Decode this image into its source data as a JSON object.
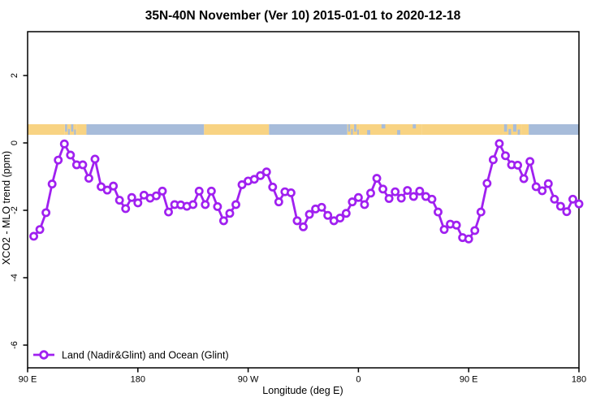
{
  "figure": {
    "title": "35N-40N November (Ver 10)   2015-01-01 to 2020-12-18",
    "background": "#FFFFFF"
  },
  "chart_data": {
    "type": "line",
    "title": "35N-40N November (Ver 10)   2015-01-01 to 2020-12-18",
    "xlabel": "Longitude (deg E)",
    "ylabel": "XCO2 - MLO trend (ppm)",
    "x_axis": {
      "tick_labels": [
        "90 E",
        "180",
        "90 W",
        "0",
        "90 E",
        "180"
      ],
      "tick_positions_deg": [
        0,
        90,
        180,
        270,
        360,
        450
      ],
      "range_deg": [
        0,
        450
      ],
      "wrap_note": "longitude axis runs 90E through 180, 90W, 0, 90E to 180 (450 deg span)"
    },
    "y_axis": {
      "tick_labels": [
        "2",
        "0",
        "-2",
        "-4",
        "-6"
      ],
      "tick_values": [
        2,
        0,
        -2,
        -4,
        -6
      ],
      "range": [
        -6.67,
        3.3
      ]
    },
    "legend": {
      "label": "Land (Nadir&Glint) and Ocean (Glint)",
      "position": "bottom-left",
      "marker": "open-circle-on-line"
    },
    "series": [
      {
        "name": "Land (Nadir&Glint) and Ocean (Glint)",
        "color": "#A020F0",
        "marker": "open-circle",
        "x_deg": [
          5,
          10,
          15,
          20,
          25,
          30,
          35,
          40,
          45,
          50,
          55,
          60,
          65,
          70,
          75,
          80,
          85,
          90,
          95,
          100,
          105,
          110,
          115,
          120,
          125,
          130,
          135,
          140,
          145,
          150,
          155,
          160,
          165,
          170,
          175,
          180,
          185,
          190,
          195,
          200,
          205,
          210,
          215,
          220,
          225,
          230,
          235,
          240,
          245,
          250,
          255,
          260,
          265,
          270,
          275,
          280,
          285,
          290,
          295,
          300,
          305,
          310,
          315,
          320,
          325,
          330,
          335,
          340,
          345,
          350,
          355,
          360,
          365,
          370,
          375,
          380,
          385,
          390,
          395,
          400,
          405,
          410,
          415,
          420,
          425,
          430,
          435,
          440,
          445,
          450
        ],
        "values": [
          -2.77,
          -2.57,
          -2.07,
          -1.22,
          -0.51,
          -0.03,
          -0.36,
          -0.65,
          -0.65,
          -1.05,
          -0.48,
          -1.3,
          -1.4,
          -1.28,
          -1.7,
          -1.95,
          -1.62,
          -1.78,
          -1.55,
          -1.64,
          -1.57,
          -1.43,
          -2.05,
          -1.83,
          -1.84,
          -1.88,
          -1.83,
          -1.43,
          -1.83,
          -1.43,
          -1.89,
          -2.31,
          -2.09,
          -1.83,
          -1.24,
          -1.13,
          -1.08,
          -0.97,
          -0.86,
          -1.31,
          -1.75,
          -1.45,
          -1.48,
          -2.31,
          -2.49,
          -2.12,
          -1.96,
          -1.91,
          -2.15,
          -2.31,
          -2.23,
          -2.09,
          -1.75,
          -1.62,
          -1.83,
          -1.49,
          -1.05,
          -1.37,
          -1.65,
          -1.45,
          -1.64,
          -1.41,
          -1.59,
          -1.43,
          -1.59,
          -1.67,
          -2.05,
          -2.57,
          -2.41,
          -2.44,
          -2.81,
          -2.85,
          -2.6,
          -2.05,
          -1.2,
          -0.5,
          -0.02,
          -0.38,
          -0.65,
          -0.66,
          -1.06,
          -0.55,
          -1.3,
          -1.42,
          -1.21,
          -1.67,
          -1.88,
          -2.04,
          -1.67,
          -1.81
        ]
      }
    ],
    "map_band": {
      "description": "land/ocean strip for 35N-40N drawn just above the 0 ppm line",
      "land_color": "#F8D383",
      "ocean_color": "#A7BCDA",
      "segments": [
        {
          "type": "land",
          "from_deg": 0,
          "to_deg": 30
        },
        {
          "type": "mixed",
          "from_deg": 30,
          "to_deg": 40
        },
        {
          "type": "land",
          "from_deg": 40,
          "to_deg": 48
        },
        {
          "type": "ocean",
          "from_deg": 48,
          "to_deg": 144
        },
        {
          "type": "land",
          "from_deg": 144,
          "to_deg": 197
        },
        {
          "type": "ocean",
          "from_deg": 197,
          "to_deg": 261
        },
        {
          "type": "mixed",
          "from_deg": 261,
          "to_deg": 271
        },
        {
          "type": "speckled",
          "from_deg": 271,
          "to_deg": 322
        },
        {
          "type": "land",
          "from_deg": 322,
          "to_deg": 388
        },
        {
          "type": "mixed",
          "from_deg": 388,
          "to_deg": 403
        },
        {
          "type": "land",
          "from_deg": 403,
          "to_deg": 409
        },
        {
          "type": "ocean",
          "from_deg": 409,
          "to_deg": 450
        }
      ]
    }
  }
}
